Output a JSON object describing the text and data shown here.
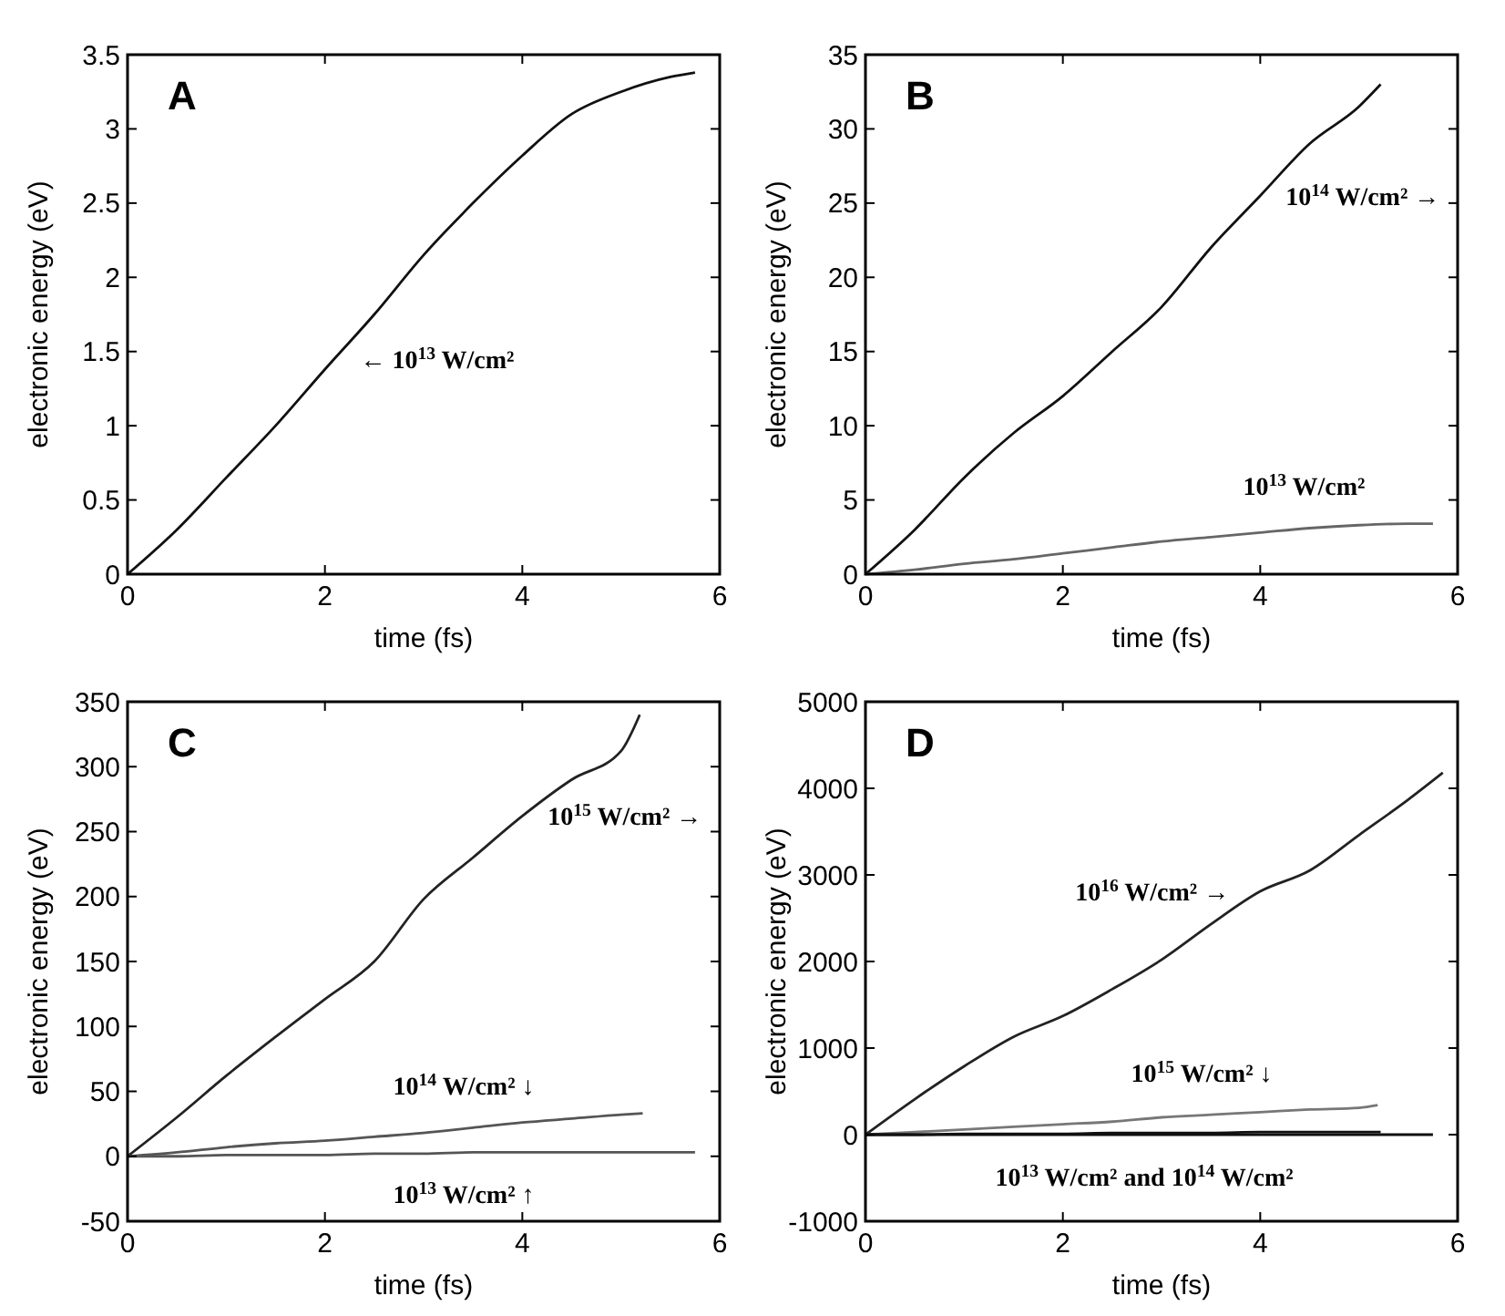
{
  "chart_data": [
    {
      "type": "line",
      "title": "A",
      "xlabel": "time (fs)",
      "ylabel": "electronic energy (eV)",
      "xlim": [
        0,
        6
      ],
      "xticks": [
        0,
        2,
        4,
        6
      ],
      "ylim": [
        0,
        3.5
      ],
      "yticks": [
        0,
        0.5,
        1,
        1.5,
        2,
        2.5,
        3,
        3.5
      ],
      "series": [
        {
          "color": "#111111",
          "x": [
            0,
            0.5,
            1,
            1.5,
            2,
            2.5,
            3,
            3.5,
            4,
            4.5,
            5,
            5.5,
            5.75
          ],
          "values": [
            0,
            0.3,
            0.65,
            1.0,
            1.38,
            1.75,
            2.15,
            2.5,
            2.82,
            3.1,
            3.25,
            3.35,
            3.38
          ]
        }
      ],
      "annotations": [
        {
          "text": "← 10$^{13}$ W/cm²",
          "x": 2.1,
          "y": 1.45
        }
      ]
    },
    {
      "type": "line",
      "title": "B",
      "xlabel": "time (fs)",
      "ylabel": "electronic energy (eV)",
      "xlim": [
        0,
        6
      ],
      "xticks": [
        0,
        2,
        4,
        6
      ],
      "ylim": [
        0,
        35
      ],
      "yticks": [
        0,
        5,
        10,
        15,
        20,
        25,
        30,
        35
      ],
      "series": [
        {
          "color": "#111111",
          "x": [
            0,
            0.5,
            1,
            1.5,
            2,
            2.5,
            3,
            3.5,
            4,
            4.5,
            5,
            5.22
          ],
          "values": [
            0,
            3,
            6.5,
            9.5,
            12,
            15,
            18,
            22,
            25.5,
            29,
            31.5,
            33
          ]
        },
        {
          "color": "#666666",
          "x": [
            0,
            0.5,
            1,
            1.5,
            2,
            2.5,
            3,
            3.5,
            4,
            4.5,
            5,
            5.5,
            5.75
          ],
          "values": [
            0,
            0.3,
            0.7,
            1,
            1.4,
            1.8,
            2.2,
            2.5,
            2.8,
            3.1,
            3.3,
            3.4,
            3.4
          ]
        }
      ],
      "annotations": [
        {
          "text": "10$^{14}$ W/cm² →",
          "x": 4,
          "y": 25.5
        },
        {
          "text": "10$^{13}$ W/cm²",
          "x": 4.5,
          "y": 3.1
        }
      ]
    },
    {
      "type": "line",
      "title": "C",
      "xlabel": "time (fs)",
      "ylabel": "electronic energy (eV)",
      "xlim": [
        0,
        6
      ],
      "xticks": [
        0,
        2,
        4,
        6
      ],
      "ylim": [
        -50,
        350
      ],
      "yticks": [
        -50,
        0,
        50,
        100,
        150,
        200,
        250,
        300,
        350
      ],
      "series": [
        {
          "color": "#222222",
          "x": [
            0,
            0.5,
            1,
            1.5,
            2,
            2.5,
            3,
            3.5,
            4,
            4.5,
            5,
            5.19
          ],
          "values": [
            0,
            30,
            62,
            92,
            121,
            150,
            198,
            230,
            262,
            290,
            312,
            340
          ]
        },
        {
          "color": "#555555",
          "x": [
            0,
            0.5,
            1,
            1.5,
            2,
            2.5,
            3,
            3.5,
            4,
            4.5,
            5,
            5.22
          ],
          "values": [
            0,
            3,
            7,
            10,
            12,
            15,
            18,
            22,
            26,
            29,
            32,
            33
          ]
        },
        {
          "color": "#555555",
          "x": [
            0,
            0.5,
            1,
            1.5,
            2,
            2.5,
            3,
            3.5,
            4,
            4.5,
            5,
            5.5,
            5.75
          ],
          "values": [
            0,
            0,
            1,
            1,
            1,
            2,
            2,
            3,
            3,
            3,
            3,
            3,
            3
          ]
        }
      ],
      "annotations": [
        {
          "text": "10$^{15}$ W/cm² →",
          "x": 4,
          "y": 262
        },
        {
          "text": "10$^{14}$ W/cm² ↓",
          "x": 3.5,
          "y": 22
        },
        {
          "text": "10$^{13}$ W/cm² ↑",
          "x": 3.5,
          "y": 3
        }
      ]
    },
    {
      "type": "line",
      "title": "D",
      "xlabel": "time (fs)",
      "ylabel": "electronic energy (eV)",
      "xlim": [
        0,
        6
      ],
      "xticks": [
        0,
        2,
        4,
        6
      ],
      "ylim": [
        -1000,
        5000
      ],
      "yticks": [
        -1000,
        0,
        1000,
        2000,
        3000,
        4000,
        5000
      ],
      "series": [
        {
          "color": "#222222",
          "x": [
            0,
            0.5,
            1,
            1.5,
            2,
            2.5,
            3,
            3.5,
            4,
            4.5,
            5,
            5.5,
            5.85
          ],
          "values": [
            0,
            410,
            790,
            1130,
            1370,
            1680,
            2020,
            2430,
            2810,
            3050,
            3460,
            3870,
            4180
          ]
        },
        {
          "color": "#777777",
          "x": [
            0,
            0.5,
            1,
            1.5,
            2,
            2.5,
            3,
            3.5,
            4,
            4.5,
            5,
            5.19
          ],
          "values": [
            0,
            30,
            60,
            90,
            120,
            150,
            200,
            230,
            260,
            290,
            310,
            340
          ]
        },
        {
          "color": "#111111",
          "x": [
            0,
            0.5,
            1,
            1.5,
            2,
            2.5,
            3,
            3.5,
            4,
            4.5,
            5,
            5.22
          ],
          "values": [
            0,
            0,
            10,
            10,
            10,
            20,
            20,
            20,
            30,
            30,
            30,
            30
          ]
        },
        {
          "color": "#111111",
          "x": [
            0,
            0.5,
            1,
            1.5,
            2,
            2.5,
            3,
            3.5,
            4,
            4.5,
            5,
            5.5,
            5.75
          ],
          "values": [
            0,
            0,
            0,
            0,
            0,
            0,
            0,
            0,
            0,
            0,
            0,
            0,
            0
          ]
        }
      ],
      "annotations": [
        {
          "text": "10$^{16}$ W/cm² →",
          "x": 4,
          "y": 2810
        },
        {
          "text": "10$^{15}$ W/cm² ↓",
          "x": 3.5,
          "y": 230
        },
        {
          "text": "10$^{13}$ W/cm² and 10$^{14}$ W/cm²",
          "x": 3,
          "y": 0
        }
      ]
    }
  ]
}
